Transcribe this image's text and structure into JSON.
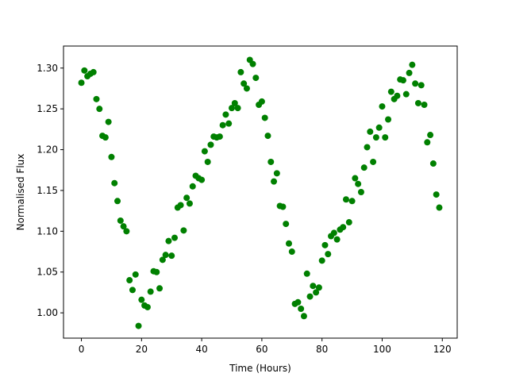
{
  "chart_data": {
    "type": "scatter",
    "xlabel": "Time (Hours)",
    "ylabel": "Normalised Flux",
    "color": "#008000",
    "xlim": [
      -5.95,
      124.95
    ],
    "xticks": [
      0,
      20,
      40,
      60,
      80,
      100,
      120
    ],
    "ylim": [
      0.969,
      1.327
    ],
    "yticks": [
      {
        "value": 1.0,
        "label": "1.00"
      },
      1.05,
      {
        "value": 1.1,
        "label": "1.10"
      },
      1.15,
      {
        "value": 1.2,
        "label": "1.20"
      },
      1.25,
      {
        "value": 1.3,
        "label": "1.30"
      }
    ],
    "x": [
      0,
      1,
      2,
      3,
      4,
      5,
      6,
      7,
      8,
      9,
      10,
      11,
      12,
      13,
      14,
      15,
      16,
      17,
      18,
      19,
      20,
      21,
      22,
      23,
      24,
      25,
      26,
      27,
      28,
      29,
      30,
      31,
      32,
      33,
      34,
      35,
      36,
      37,
      38,
      39,
      40,
      41,
      42,
      43,
      44,
      45,
      46,
      47,
      48,
      49,
      50,
      51,
      52,
      53,
      54,
      55,
      56,
      57,
      58,
      59,
      60,
      61,
      62,
      63,
      64,
      65,
      66,
      67,
      68,
      69,
      70,
      71,
      72,
      73,
      74,
      75,
      76,
      77,
      78,
      79,
      80,
      81,
      82,
      83,
      84,
      85,
      86,
      87,
      88,
      89,
      90,
      91,
      92,
      93,
      94,
      95,
      96,
      97,
      98,
      99,
      100,
      101,
      102,
      103,
      104,
      105,
      106,
      107,
      108,
      109,
      110,
      111,
      112,
      113,
      114,
      115,
      116,
      117,
      118,
      119
    ],
    "values": [
      1.282,
      1.297,
      1.29,
      1.293,
      1.295,
      1.262,
      1.25,
      1.217,
      1.215,
      1.234,
      1.191,
      1.159,
      1.137,
      1.113,
      1.106,
      1.1,
      1.04,
      1.028,
      1.047,
      0.984,
      1.016,
      1.009,
      1.007,
      1.026,
      1.051,
      1.05,
      1.03,
      1.065,
      1.071,
      1.088,
      1.07,
      1.092,
      1.129,
      1.132,
      1.101,
      1.141,
      1.134,
      1.155,
      1.168,
      1.165,
      1.163,
      1.198,
      1.185,
      1.206,
      1.216,
      1.215,
      1.216,
      1.23,
      1.243,
      1.232,
      1.251,
      1.257,
      1.251,
      1.295,
      1.281,
      1.275,
      1.31,
      1.305,
      1.288,
      1.255,
      1.259,
      1.239,
      1.217,
      1.185,
      1.161,
      1.171,
      1.131,
      1.13,
      1.109,
      1.085,
      1.075,
      1.011,
      1.013,
      1.005,
      0.996,
      1.048,
      1.02,
      1.033,
      1.025,
      1.031,
      1.064,
      1.083,
      1.072,
      1.094,
      1.098,
      1.09,
      1.102,
      1.105,
      1.139,
      1.111,
      1.137,
      1.165,
      1.158,
      1.148,
      1.178,
      1.203,
      1.222,
      1.185,
      1.215,
      1.227,
      1.253,
      1.215,
      1.237,
      1.271,
      1.262,
      1.266,
      1.286,
      1.285,
      1.268,
      1.294,
      1.304,
      1.281,
      1.257,
      1.279,
      1.255,
      1.209,
      1.218,
      1.183,
      1.145,
      1.129
    ]
  }
}
